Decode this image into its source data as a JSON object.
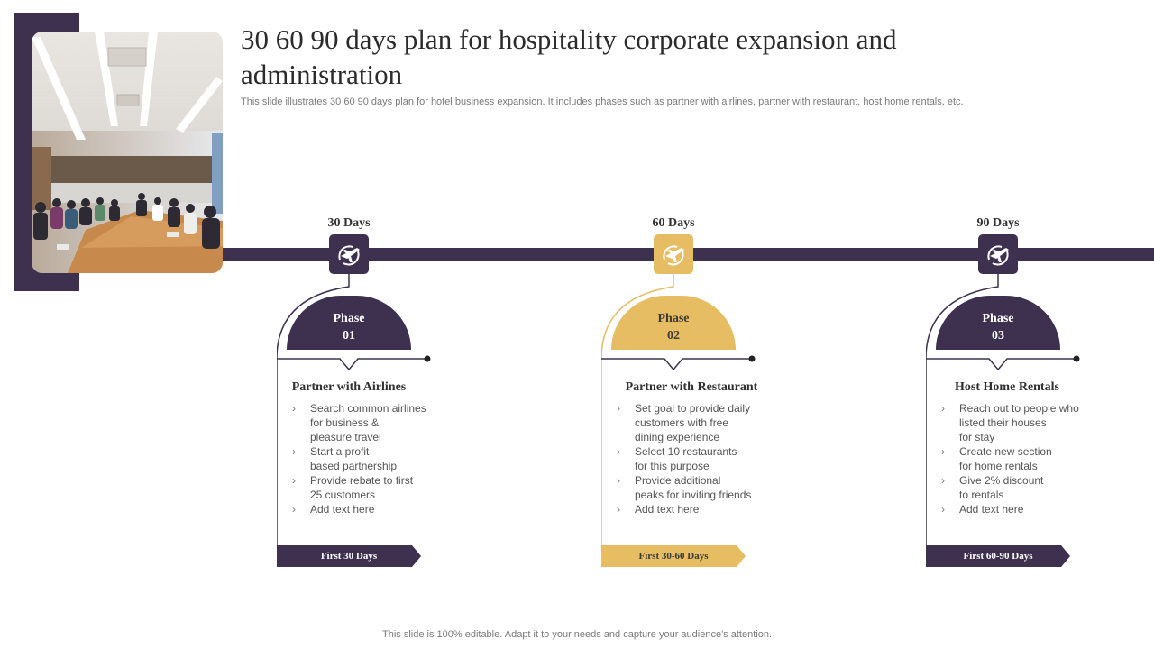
{
  "title": "30 60 90 days plan for hospitality corporate expansion and administration",
  "subtitle": "This slide illustrates 30 60 90 days plan for hotel business expansion. It includes phases such as partner with airlines, partner with restaurant, host home rentals, etc.",
  "footer": "This slide is 100% editable. Adapt it to your needs and capture your audience's attention.",
  "colors": {
    "dark": "#3e3150",
    "gold": "#e6bd62",
    "text": "#2b2b2b"
  },
  "phases": [
    {
      "day_label": "30 Days",
      "icon": "airplane-globe-icon",
      "phase_word": "Phase",
      "phase_num": "01",
      "heading": "Partner with Airlines",
      "bullets": [
        [
          "Search common airlines",
          "for business &",
          "pleasure travel"
        ],
        [
          "Start a profit",
          "based partnership"
        ],
        [
          "Provide  rebate to first",
          "25 customers"
        ],
        [
          "Add text here"
        ]
      ],
      "banner": "First 30 Days"
    },
    {
      "day_label": "60 Days",
      "icon": "airplane-globe-icon",
      "phase_word": "Phase",
      "phase_num": "02",
      "heading": "Partner with Restaurant",
      "bullets": [
        [
          "Set goal to provide  daily",
          "customers with free",
          "dining experience"
        ],
        [
          "Select 10 restaurants",
          "for this purpose"
        ],
        [
          "Provide  additional",
          "peaks for inviting friends"
        ],
        [
          "Add text here"
        ]
      ],
      "banner": "First 30-60 Days"
    },
    {
      "day_label": "90 Days",
      "icon": "airplane-globe-icon",
      "phase_word": "Phase",
      "phase_num": "03",
      "heading": "Host Home Rentals",
      "bullets": [
        [
          "Reach out to people who",
          "listed their houses",
          "for stay"
        ],
        [
          "Create new section",
          "for home rentals"
        ],
        [
          "Give  2% discount",
          "to rentals"
        ],
        [
          "Add text here"
        ]
      ],
      "banner": "First 60-90 Days"
    }
  ]
}
